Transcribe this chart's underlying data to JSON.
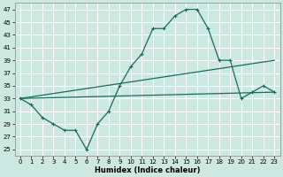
{
  "title": "",
  "xlabel": "Humidex (Indice chaleur)",
  "bg_color": "#cce8e0",
  "grid_color": "#ffffff",
  "line_color": "#1a6b5a",
  "xlim": [
    -0.5,
    23.5
  ],
  "ylim": [
    24,
    48
  ],
  "yticks": [
    25,
    27,
    29,
    31,
    33,
    35,
    37,
    39,
    41,
    43,
    45,
    47
  ],
  "xticks": [
    0,
    1,
    2,
    3,
    4,
    5,
    6,
    7,
    8,
    9,
    10,
    11,
    12,
    13,
    14,
    15,
    16,
    17,
    18,
    19,
    20,
    21,
    22,
    23
  ],
  "series": [
    {
      "x": [
        0,
        1,
        2,
        3,
        4,
        5,
        6,
        7,
        8,
        9,
        10,
        11,
        12,
        13,
        14,
        15,
        16,
        17,
        18,
        19,
        20,
        21,
        22,
        23
      ],
      "y": [
        33,
        32,
        30,
        29,
        28,
        28,
        25,
        29,
        31,
        35,
        38,
        40,
        44,
        44,
        46,
        47,
        47,
        44,
        39,
        39,
        33,
        34,
        35,
        34
      ],
      "marker": true
    },
    {
      "x": [
        0,
        23
      ],
      "y": [
        33,
        39
      ],
      "marker": false
    },
    {
      "x": [
        0,
        23
      ],
      "y": [
        33,
        34
      ],
      "marker": false
    }
  ],
  "xlabel_fontsize": 6,
  "tick_fontsize": 5,
  "linewidth": 0.9
}
